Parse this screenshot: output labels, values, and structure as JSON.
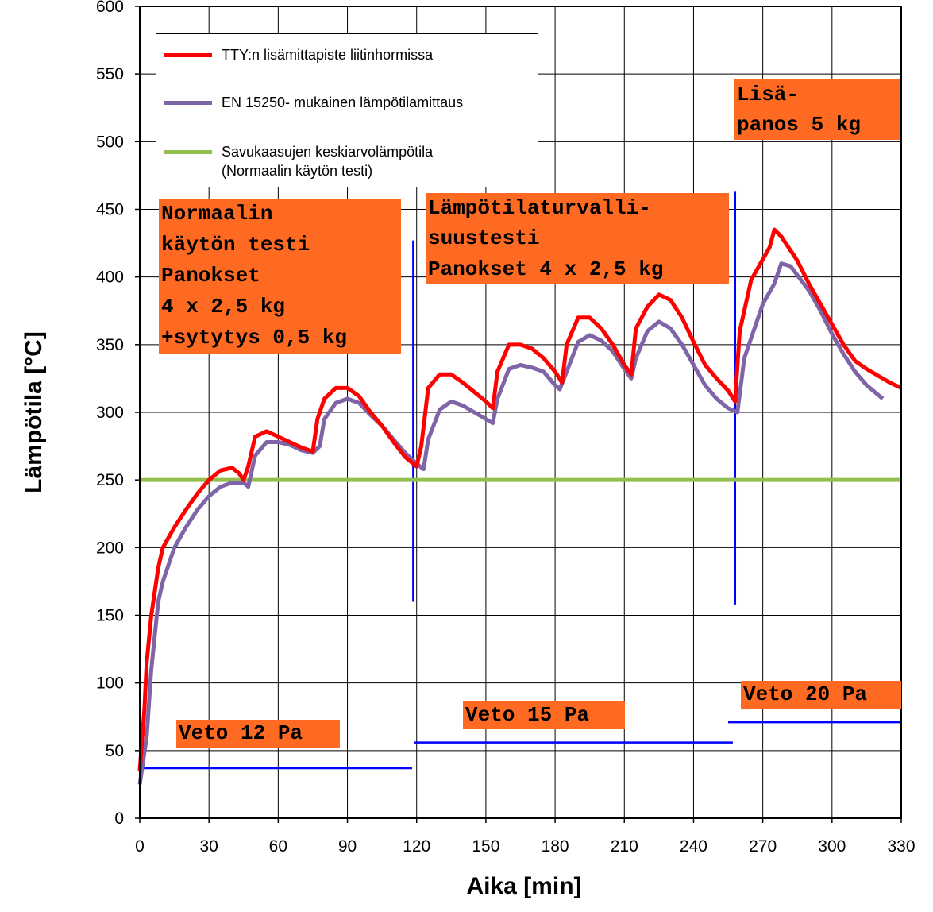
{
  "chart_data": {
    "type": "line",
    "xlabel": "Aika [min]",
    "ylabel": "Lämpötila [°C]",
    "xlim": [
      0,
      330
    ],
    "ylim": [
      0,
      600
    ],
    "xticks": [
      0,
      30,
      60,
      90,
      120,
      150,
      180,
      210,
      240,
      270,
      300,
      330
    ],
    "yticks": [
      0,
      50,
      100,
      150,
      200,
      250,
      300,
      350,
      400,
      450,
      500,
      550,
      600
    ],
    "grid": true,
    "legend": "upper left",
    "series": [
      {
        "name": "TTY:n lisämittapiste liitinhormissa",
        "color": "#ff0000",
        "x": [
          0,
          2,
          3,
          5,
          8,
          10,
          15,
          20,
          25,
          30,
          35,
          40,
          43,
          45,
          47,
          50,
          55,
          60,
          65,
          70,
          75,
          77,
          80,
          85,
          90,
          95,
          100,
          105,
          110,
          115,
          120,
          122,
          125,
          130,
          135,
          140,
          145,
          150,
          153,
          155,
          160,
          165,
          170,
          175,
          180,
          183,
          185,
          190,
          195,
          200,
          205,
          210,
          213,
          215,
          220,
          225,
          230,
          235,
          240,
          245,
          250,
          255,
          258,
          260,
          265,
          270,
          273,
          275,
          278,
          285,
          290,
          295,
          300,
          305,
          310,
          315,
          320,
          325,
          330
        ],
        "values": [
          35,
          80,
          115,
          150,
          185,
          200,
          215,
          228,
          240,
          250,
          257,
          259,
          255,
          250,
          260,
          282,
          286,
          282,
          278,
          274,
          271,
          295,
          310,
          318,
          318,
          312,
          300,
          290,
          278,
          267,
          260,
          275,
          318,
          328,
          328,
          322,
          315,
          308,
          303,
          330,
          350,
          350,
          347,
          340,
          330,
          322,
          350,
          370,
          370,
          362,
          350,
          335,
          328,
          362,
          378,
          387,
          383,
          370,
          352,
          335,
          325,
          316,
          308,
          360,
          398,
          413,
          422,
          435,
          430,
          412,
          395,
          380,
          365,
          350,
          338,
          332,
          327,
          322,
          318
        ]
      },
      {
        "name": "EN 15250- mukainen lämpötilamittaus",
        "color": "#7f64a8",
        "x": [
          0,
          3,
          5,
          8,
          10,
          15,
          20,
          25,
          30,
          35,
          40,
          45,
          47,
          50,
          55,
          60,
          65,
          70,
          75,
          78,
          80,
          85,
          90,
          95,
          100,
          105,
          110,
          115,
          120,
          123,
          125,
          130,
          135,
          140,
          145,
          150,
          153,
          155,
          160,
          165,
          170,
          175,
          180,
          182,
          185,
          190,
          195,
          200,
          205,
          210,
          213,
          215,
          220,
          225,
          230,
          235,
          240,
          245,
          250,
          255,
          259,
          262,
          265,
          270,
          275,
          278,
          282,
          290,
          295,
          300,
          305,
          310,
          315,
          322
        ],
        "values": [
          25,
          60,
          110,
          160,
          175,
          200,
          215,
          228,
          238,
          245,
          248,
          248,
          245,
          268,
          278,
          278,
          276,
          272,
          270,
          275,
          295,
          307,
          310,
          307,
          298,
          290,
          280,
          270,
          262,
          258,
          280,
          302,
          308,
          305,
          300,
          295,
          292,
          310,
          332,
          335,
          333,
          330,
          320,
          317,
          330,
          352,
          357,
          353,
          345,
          332,
          325,
          340,
          360,
          367,
          362,
          350,
          335,
          320,
          310,
          303,
          300,
          340,
          355,
          380,
          395,
          410,
          408,
          390,
          375,
          358,
          343,
          330,
          320,
          310
        ]
      },
      {
        "name": "Savukaasujen keskiarvolämpötila\n(Normaalin käytön testi)",
        "color": "#92c050",
        "x": [
          0,
          330
        ],
        "values": [
          250,
          250
        ]
      }
    ],
    "reference_lines": {
      "color": "#0000ff",
      "lines": [
        {
          "x": [
            0,
            118
          ],
          "values": [
            37,
            37
          ]
        },
        {
          "x": [
            119,
            257
          ],
          "values": [
            56,
            56
          ]
        },
        {
          "x": [
            255,
            330
          ],
          "values": [
            71,
            71
          ]
        },
        {
          "x": [
            118.5,
            118.5
          ],
          "values": [
            160,
            427
          ]
        },
        {
          "x": [
            258,
            258
          ],
          "values": [
            158,
            463
          ]
        }
      ]
    },
    "annotations": [
      "Normaalin\nkäytön testi\nPanokset\n4 x 2,5 kg\n+sytytys 0,5 kg",
      "Lämpötilaturvalli-\nsuustesti\nPanokset 4 x 2,5 kg",
      "Lisä-\npanos 5 kg",
      "Veto 12 Pa",
      "Veto 15 Pa",
      "Veto 20 Pa"
    ]
  }
}
